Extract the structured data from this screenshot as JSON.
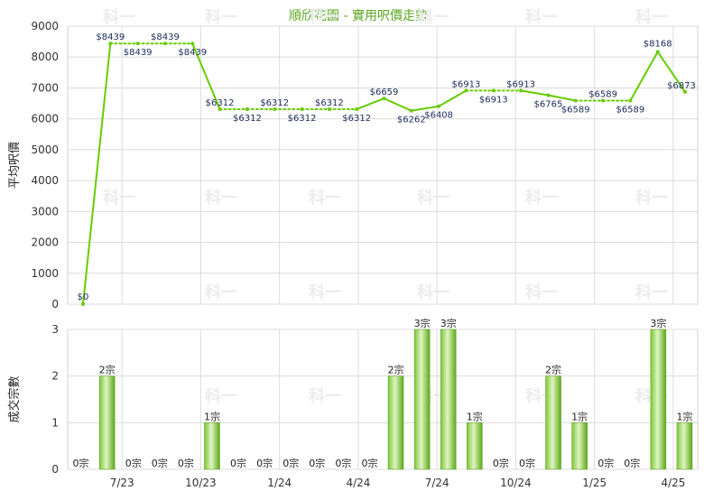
{
  "chart_data": [
    {
      "type": "line",
      "title": "順欣花園 - 實用呎價走勢",
      "ylabel": "平均呎價",
      "ylim": [
        0,
        9000
      ],
      "yticks": [
        0,
        1000,
        2000,
        3000,
        4000,
        5000,
        6000,
        7000,
        8000,
        9000
      ],
      "grid": true,
      "series": [
        {
          "values": [
            0,
            8439,
            8439,
            8439,
            8439,
            6312,
            6312,
            6312,
            6312,
            6312,
            6312,
            6659,
            6262,
            6408,
            6913,
            6913,
            6913,
            6765,
            6589,
            6589,
            6589,
            8168,
            6873
          ],
          "labels": [
            "$0",
            "$8439",
            "$8439",
            "$8439",
            "$8439",
            "$6312",
            "$6312",
            "$6312",
            "$6312",
            "$6312",
            "$6312",
            "$6659",
            "$6262",
            "$6408",
            "$6913",
            "$6913",
            "$6913",
            "$6765",
            "$6589",
            "$6589",
            "$6589",
            "$8168",
            "$6873"
          ],
          "dotted_segments": [
            2,
            3,
            4,
            6,
            7,
            8,
            9,
            10,
            15,
            16,
            19,
            20
          ],
          "color": "#66cc00"
        }
      ]
    },
    {
      "type": "bar",
      "ylabel": "成交宗數",
      "ylim": [
        0,
        3
      ],
      "yticks": [
        0,
        1,
        2,
        3
      ],
      "grid": true,
      "categories": [
        "7/23",
        "10/23",
        "1/24",
        "4/24",
        "7/24",
        "10/24",
        "1/25",
        "4/25"
      ],
      "values": [
        0,
        2,
        0,
        0,
        0,
        1,
        0,
        0,
        0,
        0,
        0,
        0,
        2,
        3,
        3,
        1,
        0,
        0,
        2,
        1,
        0,
        0,
        3,
        1
      ],
      "labels": [
        "0宗",
        "2宗",
        "0宗",
        "0宗",
        "0宗",
        "1宗",
        "0宗",
        "0宗",
        "0宗",
        "0宗",
        "0宗",
        "0宗",
        "2宗",
        "3宗",
        "3宗",
        "1宗",
        "0宗",
        "0宗",
        "2宗",
        "1宗",
        "0宗",
        "0宗",
        "3宗",
        "1宗"
      ],
      "color": "#66bb22"
    }
  ],
  "watermark": "科一"
}
